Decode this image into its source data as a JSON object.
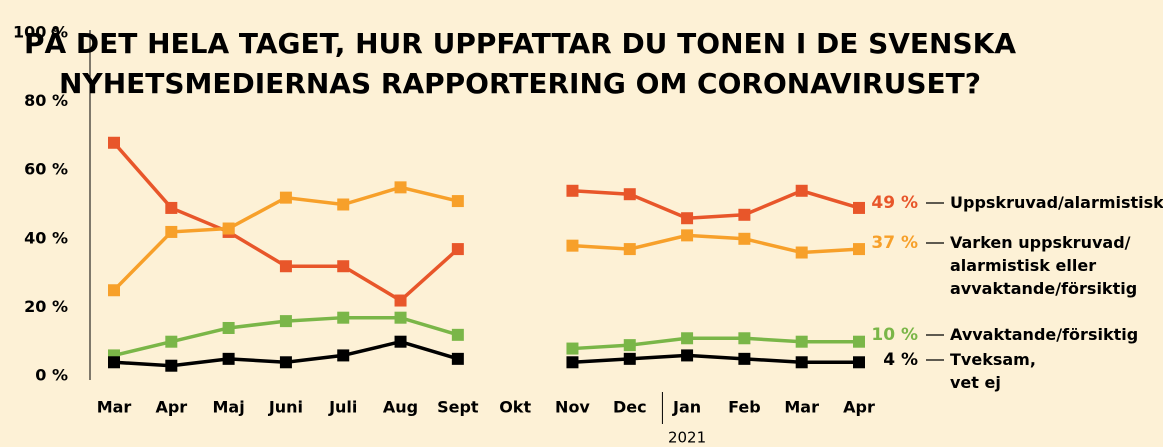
{
  "chart_data": {
    "type": "line",
    "title": "PÅ DET HELA TAGET, HUR UPPFATTAR DU TONEN I DE SVENSKA\nNYHETSMEDIERNAS RAPPORTERING OM CORONAVIRUSET?",
    "categories": [
      "Mar",
      "Apr",
      "Maj",
      "Juni",
      "Juli",
      "Aug",
      "Sept",
      "Okt",
      "Nov",
      "Dec",
      "Jan",
      "Feb",
      "Mar",
      "Apr"
    ],
    "x_annotation": "2021",
    "ylim": [
      0,
      100
    ],
    "yticks": [
      {
        "value": 0,
        "label": "0 %"
      },
      {
        "value": 20,
        "label": "20 %"
      },
      {
        "value": 40,
        "label": "40 %"
      },
      {
        "value": 60,
        "label": "60 %"
      },
      {
        "value": 80,
        "label": "80 %"
      },
      {
        "value": 100,
        "label": "100 %"
      }
    ],
    "series": [
      {
        "name": "Uppskruvad/alarmistisk",
        "color": "#e8562a",
        "values": [
          68,
          49,
          42,
          32,
          32,
          22,
          37,
          null,
          54,
          53,
          46,
          47,
          54,
          49
        ],
        "value_labels": [
          null,
          null,
          null,
          null,
          null,
          null,
          null,
          null,
          null,
          null,
          null,
          null,
          null,
          "49 %"
        ]
      },
      {
        "name": "Varken uppskruvad/\nalarmistisk eller\navvaktande/försiktig",
        "color": "#f7a02a",
        "values": [
          25,
          42,
          43,
          52,
          50,
          55,
          51,
          null,
          38,
          37,
          41,
          40,
          36,
          37
        ],
        "value_labels": [
          null,
          null,
          null,
          null,
          null,
          null,
          null,
          null,
          null,
          null,
          null,
          null,
          null,
          "37 %"
        ]
      },
      {
        "name": "Avvaktande/försiktig",
        "color": "#7ab648",
        "values": [
          6,
          10,
          14,
          16,
          17,
          17,
          12,
          null,
          8,
          9,
          11,
          11,
          10,
          10
        ],
        "value_labels": [
          null,
          null,
          null,
          null,
          null,
          null,
          null,
          null,
          null,
          null,
          null,
          null,
          null,
          "10 %"
        ]
      },
      {
        "name": "Tveksam,\nvet ej",
        "color": "#000000",
        "values": [
          4,
          3,
          5,
          4,
          6,
          10,
          5,
          null,
          4,
          5,
          6,
          5,
          4,
          4
        ],
        "value_labels": [
          null,
          null,
          null,
          null,
          null,
          null,
          null,
          null,
          null,
          null,
          null,
          null,
          null,
          "4 %"
        ]
      }
    ]
  }
}
